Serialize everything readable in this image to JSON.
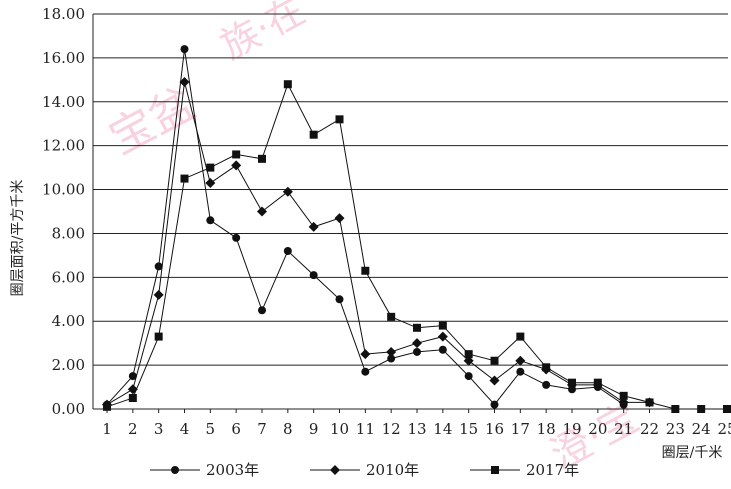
{
  "chart_data": {
    "type": "line",
    "xlabel": "圈层/千米",
    "ylabel": "圈层面积/平方千米",
    "ylim": [
      0,
      18
    ],
    "yticks": [
      "0.00",
      "2.00",
      "4.00",
      "6.00",
      "8.00",
      "10.00",
      "12.00",
      "14.00",
      "16.00",
      "18.00"
    ],
    "categories": [
      "1",
      "2",
      "3",
      "4",
      "5",
      "6",
      "7",
      "8",
      "9",
      "10",
      "11",
      "12",
      "13",
      "14",
      "15",
      "16",
      "17",
      "18",
      "19",
      "20",
      "21",
      "22",
      "23",
      "24",
      "25"
    ],
    "grid": true,
    "legend_position": "bottom",
    "series": [
      {
        "name": "2003年",
        "marker": "circle",
        "values": [
          0.2,
          1.5,
          6.5,
          16.4,
          8.6,
          7.8,
          4.5,
          7.2,
          6.1,
          5.0,
          1.7,
          2.3,
          2.6,
          2.7,
          1.5,
          0.2,
          1.7,
          1.1,
          0.9,
          1.0,
          0.2,
          null,
          null,
          null,
          null
        ]
      },
      {
        "name": "2010年",
        "marker": "diamond",
        "values": [
          0.2,
          0.9,
          5.2,
          14.9,
          10.3,
          11.1,
          9.0,
          9.9,
          8.3,
          8.7,
          2.5,
          2.6,
          3.0,
          3.3,
          2.2,
          1.3,
          2.2,
          1.8,
          1.1,
          1.1,
          0.3,
          0.3,
          null,
          null,
          null
        ]
      },
      {
        "name": "2017年",
        "marker": "square",
        "values": [
          0.1,
          0.5,
          3.3,
          10.5,
          11.0,
          11.6,
          11.4,
          14.8,
          12.5,
          13.2,
          6.3,
          4.2,
          3.7,
          3.8,
          2.5,
          2.2,
          3.3,
          1.9,
          1.2,
          1.2,
          0.6,
          0.3,
          0.0,
          0.0,
          0.0
        ]
      }
    ]
  }
}
